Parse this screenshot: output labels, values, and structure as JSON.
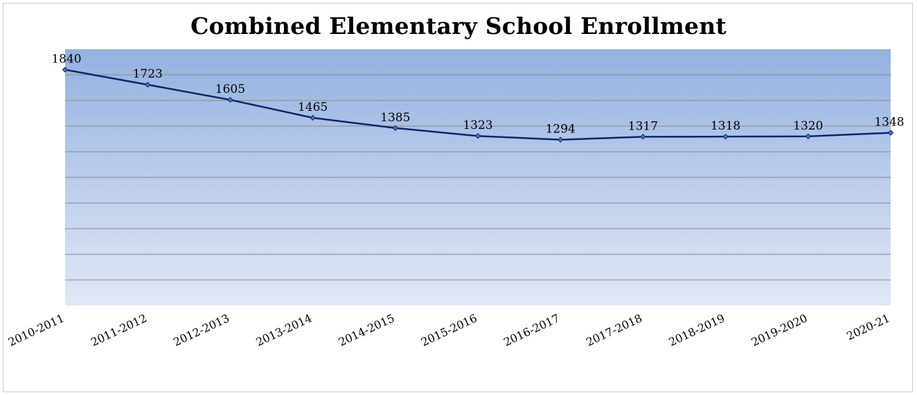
{
  "chart_data": {
    "type": "line",
    "title": "Combined Elementary School Enrollment",
    "categories": [
      "2010-2011",
      "2011-2012",
      "2012-2013",
      "2013-2014",
      "2014-2015",
      "2015-2016",
      "2016-2017",
      "2017-2018",
      "2018-2019",
      "2019-2020",
      "2020-21"
    ],
    "series": [
      {
        "values": [
          1840,
          1723,
          1605,
          1465,
          1385,
          1323,
          1294,
          1317,
          1318,
          1320,
          1348
        ]
      }
    ],
    "ylim": [
      0,
      2000
    ],
    "y_gridline_step": 200,
    "y_tick_labels_shown": false,
    "grid": true,
    "legend": "none",
    "colors": {
      "line": "#0d2566",
      "marker_fill": "#4a74c9",
      "plot_top": "#94b1e1",
      "plot_bottom": "#e1e8f6",
      "grid": "#8a8a8a"
    }
  }
}
